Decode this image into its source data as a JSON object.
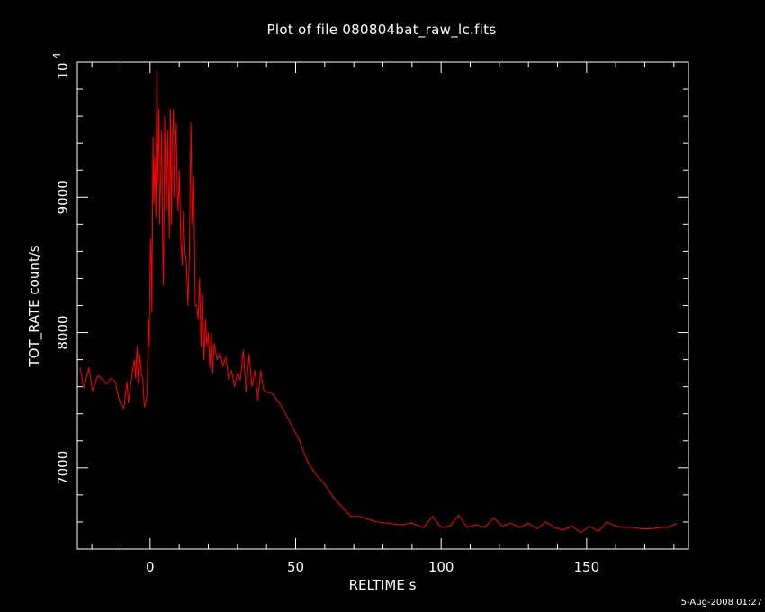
{
  "chart_data": {
    "type": "line",
    "title": "Plot of file 080804bat_raw_lc.fits",
    "xlabel": "RELTIME  s",
    "ylabel": "TOT_RATE  count/s",
    "xlim": [
      -25,
      185
    ],
    "ylim": [
      6400,
      10000
    ],
    "x_ticks": [
      0,
      50,
      100,
      150
    ],
    "x_tick_labels": [
      "0",
      "50",
      "100",
      "150"
    ],
    "y_ticks": [
      7000,
      8000,
      9000
    ],
    "y_tick_labels": [
      "7000",
      "8000",
      "9000"
    ],
    "y_top_label": "10",
    "y_top_label_exp": "4",
    "grid": false,
    "line_color": "#ff0000",
    "axis_color": "#ffffff",
    "background": "#000000",
    "series": [
      {
        "x": [
          -24.0,
          -22.8,
          -21.0,
          -19.8,
          -18.0,
          -16.5,
          -15.0,
          -13.5,
          -12.0,
          -10.5,
          -9.0,
          -8.0,
          -7.5,
          -6.5,
          -5.5,
          -5.0,
          -4.5,
          -4.0,
          -3.5,
          -3.0,
          -2.5,
          -2.0,
          -1.5,
          -1.0,
          -0.6,
          -0.3,
          0.0,
          0.3,
          0.6,
          1.0,
          1.3,
          1.6,
          2.0,
          2.3,
          2.6,
          3.0,
          3.3,
          3.6,
          4.0,
          4.3,
          4.6,
          5.0,
          5.3,
          5.6,
          6.0,
          6.3,
          6.6,
          7.0,
          7.3,
          7.6,
          8.0,
          8.3,
          8.6,
          9.0,
          9.3,
          9.6,
          10.0,
          10.5,
          11.0,
          11.5,
          12.0,
          12.5,
          13.0,
          13.5,
          14.0,
          14.5,
          15.0,
          15.5,
          16.0,
          16.5,
          17.0,
          17.5,
          18.0,
          18.5,
          19.0,
          19.5,
          20.0,
          20.5,
          21.0,
          21.5,
          22.0,
          23.0,
          24.0,
          25.0,
          26.0,
          27.0,
          28.0,
          29.0,
          30.0,
          31.0,
          32.0,
          33.0,
          34.0,
          35.0,
          36.0,
          37.0,
          38.0,
          39.0,
          40.0,
          42.0,
          45.0,
          48.0,
          51.0,
          54.0,
          57.0,
          60.0,
          63.0,
          66.0,
          69.0,
          72.0,
          75.0,
          78.0,
          82.0,
          86.0,
          90.0,
          94.0,
          97.0,
          100.0,
          103.0,
          106.0,
          109.0,
          112.0,
          115.0,
          118.0,
          121.0,
          124.0,
          127.0,
          130.0,
          133.0,
          136.0,
          139.0,
          142.0,
          145.0,
          148.0,
          151.0,
          154.0,
          157.0,
          160.0,
          163.0,
          166.0,
          169.0,
          172.0,
          175.0,
          178.0,
          181.0
        ],
        "y": [
          7740,
          7590,
          7740,
          7570,
          7680,
          7660,
          7620,
          7660,
          7640,
          7490,
          7440,
          7640,
          7480,
          7640,
          7800,
          7660,
          7900,
          7620,
          7840,
          7700,
          7650,
          7450,
          7480,
          7550,
          8100,
          7900,
          8500,
          8700,
          8150,
          9450,
          8950,
          9300,
          8850,
          9930,
          9100,
          9650,
          8800,
          9100,
          9500,
          8700,
          8350,
          9600,
          9200,
          8900,
          9500,
          9100,
          8700,
          9650,
          8800,
          9400,
          9650,
          9000,
          9300,
          9550,
          9050,
          8900,
          9200,
          8700,
          8500,
          8900,
          8600,
          8500,
          8200,
          8600,
          9550,
          8800,
          9150,
          8200,
          8200,
          8100,
          8400,
          7900,
          8300,
          7800,
          8100,
          7900,
          8000,
          7740,
          8000,
          7700,
          7920,
          7800,
          7850,
          7750,
          7820,
          7650,
          7720,
          7600,
          7700,
          7650,
          7870,
          7560,
          7840,
          7600,
          7720,
          7500,
          7720,
          7580,
          7560,
          7550,
          7460,
          7340,
          7220,
          7050,
          6950,
          6880,
          6780,
          6710,
          6640,
          6640,
          6620,
          6600,
          6590,
          6580,
          6590,
          6560,
          6640,
          6560,
          6570,
          6650,
          6560,
          6580,
          6560,
          6630,
          6570,
          6590,
          6560,
          6590,
          6550,
          6600,
          6560,
          6540,
          6570,
          6520,
          6570,
          6530,
          6600,
          6570,
          6560,
          6560,
          6550,
          6550,
          6560,
          6560,
          6590
        ]
      }
    ],
    "timestamp": "5-Aug-2008 01:27"
  }
}
